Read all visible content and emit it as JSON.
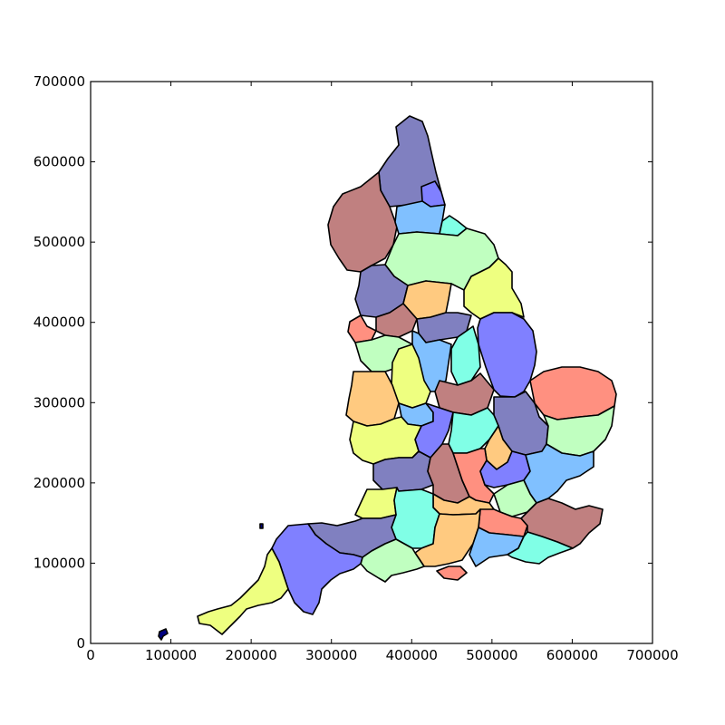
{
  "chart_data": {
    "type": "map",
    "title": "",
    "xlabel": "",
    "ylabel": "",
    "xlim": [
      0,
      700000
    ],
    "ylim": [
      0,
      700000
    ],
    "x_ticks": [
      "0",
      "100000",
      "200000",
      "300000",
      "400000",
      "500000",
      "600000",
      "700000"
    ],
    "y_ticks": [
      "0",
      "100000",
      "200000",
      "300000",
      "400000",
      "500000",
      "600000",
      "700000"
    ],
    "grid": false,
    "fill_opacity": 0.5,
    "colors": [
      "#000080",
      "#0000ff",
      "#0080ff",
      "#00ffcc",
      "#80ff80",
      "#ddff00",
      "#ff9400",
      "#ff2000",
      "#800000"
    ]
  }
}
